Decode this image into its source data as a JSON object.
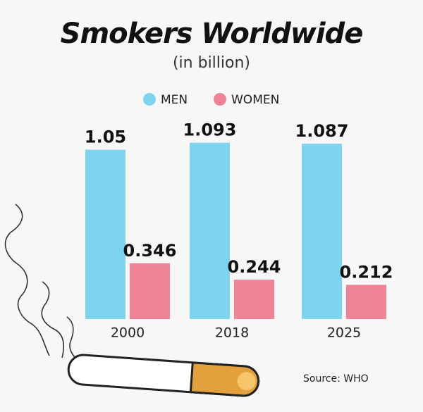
{
  "chart_data": {
    "type": "bar",
    "title": "Smokers Worldwide",
    "subtitle": "(in billion)",
    "categories": [
      "2000",
      "2018",
      "2025"
    ],
    "series": [
      {
        "name": "MEN",
        "color": "#7ed3ef",
        "values": [
          1.05,
          1.093,
          1.087
        ]
      },
      {
        "name": "WOMEN",
        "color": "#f08396",
        "values": [
          0.346,
          0.244,
          0.212
        ]
      }
    ],
    "source": "Source: WHO"
  }
}
